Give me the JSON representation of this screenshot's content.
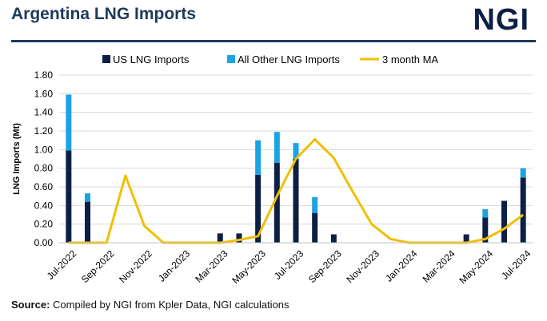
{
  "header": {
    "title": "Argentina LNG Imports",
    "logo_text": "NGI"
  },
  "source": {
    "label": "Source:",
    "text": "Compiled by NGI from Kpler Data, NGI calculations"
  },
  "colors": {
    "us": "#0e1f45",
    "other": "#1ca3e2",
    "ma": "#f0c000",
    "grid": "#d9d9d9",
    "title": "#1f3a5a"
  },
  "chart_data": {
    "type": "bar",
    "stacked": true,
    "title": "Argentina LNG Imports",
    "ylabel": "LNG Imports (Mt)",
    "xlabel": "",
    "ylim": [
      0,
      1.8
    ],
    "yticks": [
      "0.00",
      "0.20",
      "0.40",
      "0.60",
      "0.80",
      "1.00",
      "1.20",
      "1.40",
      "1.60",
      "1.80"
    ],
    "grid": true,
    "legend_position": "top",
    "categories": [
      "Jul-2022",
      "Aug-2022",
      "Sep-2022",
      "Oct-2022",
      "Nov-2022",
      "Dec-2022",
      "Jan-2023",
      "Feb-2023",
      "Mar-2023",
      "Apr-2023",
      "May-2023",
      "Jun-2023",
      "Jul-2023",
      "Aug-2023",
      "Sep-2023",
      "Oct-2023",
      "Nov-2023",
      "Dec-2023",
      "Jan-2024",
      "Feb-2024",
      "Mar-2024",
      "Apr-2024",
      "May-2024",
      "Jun-2024",
      "Jul-2024"
    ],
    "x_tick_labels": [
      "Jul-2022",
      "",
      "Sep-2022",
      "",
      "Nov-2022",
      "",
      "Jan-2023",
      "",
      "Mar-2023",
      "",
      "May-2023",
      "",
      "Jul-2023",
      "",
      "Sep-2023",
      "",
      "Nov-2023",
      "",
      "Jan-2024",
      "",
      "Mar-2024",
      "",
      "May-2024",
      "",
      "Jul-2024"
    ],
    "series": [
      {
        "name": "US LNG Imports",
        "kind": "bar",
        "values": [
          0.99,
          0.44,
          0,
          0,
          0,
          0,
          0,
          0,
          0.1,
          0.1,
          0.73,
          0.86,
          0.9,
          0.32,
          0.09,
          0,
          0,
          0,
          0,
          0,
          0,
          0.09,
          0.27,
          0.45,
          0.7
        ]
      },
      {
        "name": "All Other LNG Imports",
        "kind": "bar",
        "values": [
          0.6,
          0.09,
          0,
          0,
          0,
          0,
          0,
          0,
          0,
          0,
          0.37,
          0.33,
          0.17,
          0.17,
          0,
          0,
          0,
          0,
          0,
          0,
          0,
          0,
          0.09,
          0,
          0.1
        ]
      },
      {
        "name": "3 month MA",
        "kind": "line",
        "values": [
          0,
          0,
          0,
          0.72,
          0.18,
          0,
          0,
          0,
          0,
          0.03,
          0.07,
          0.5,
          0.9,
          1.11,
          0.91,
          0.55,
          0.2,
          0.04,
          0,
          0,
          0,
          0,
          0.04,
          0.15,
          0.3
        ]
      }
    ]
  }
}
